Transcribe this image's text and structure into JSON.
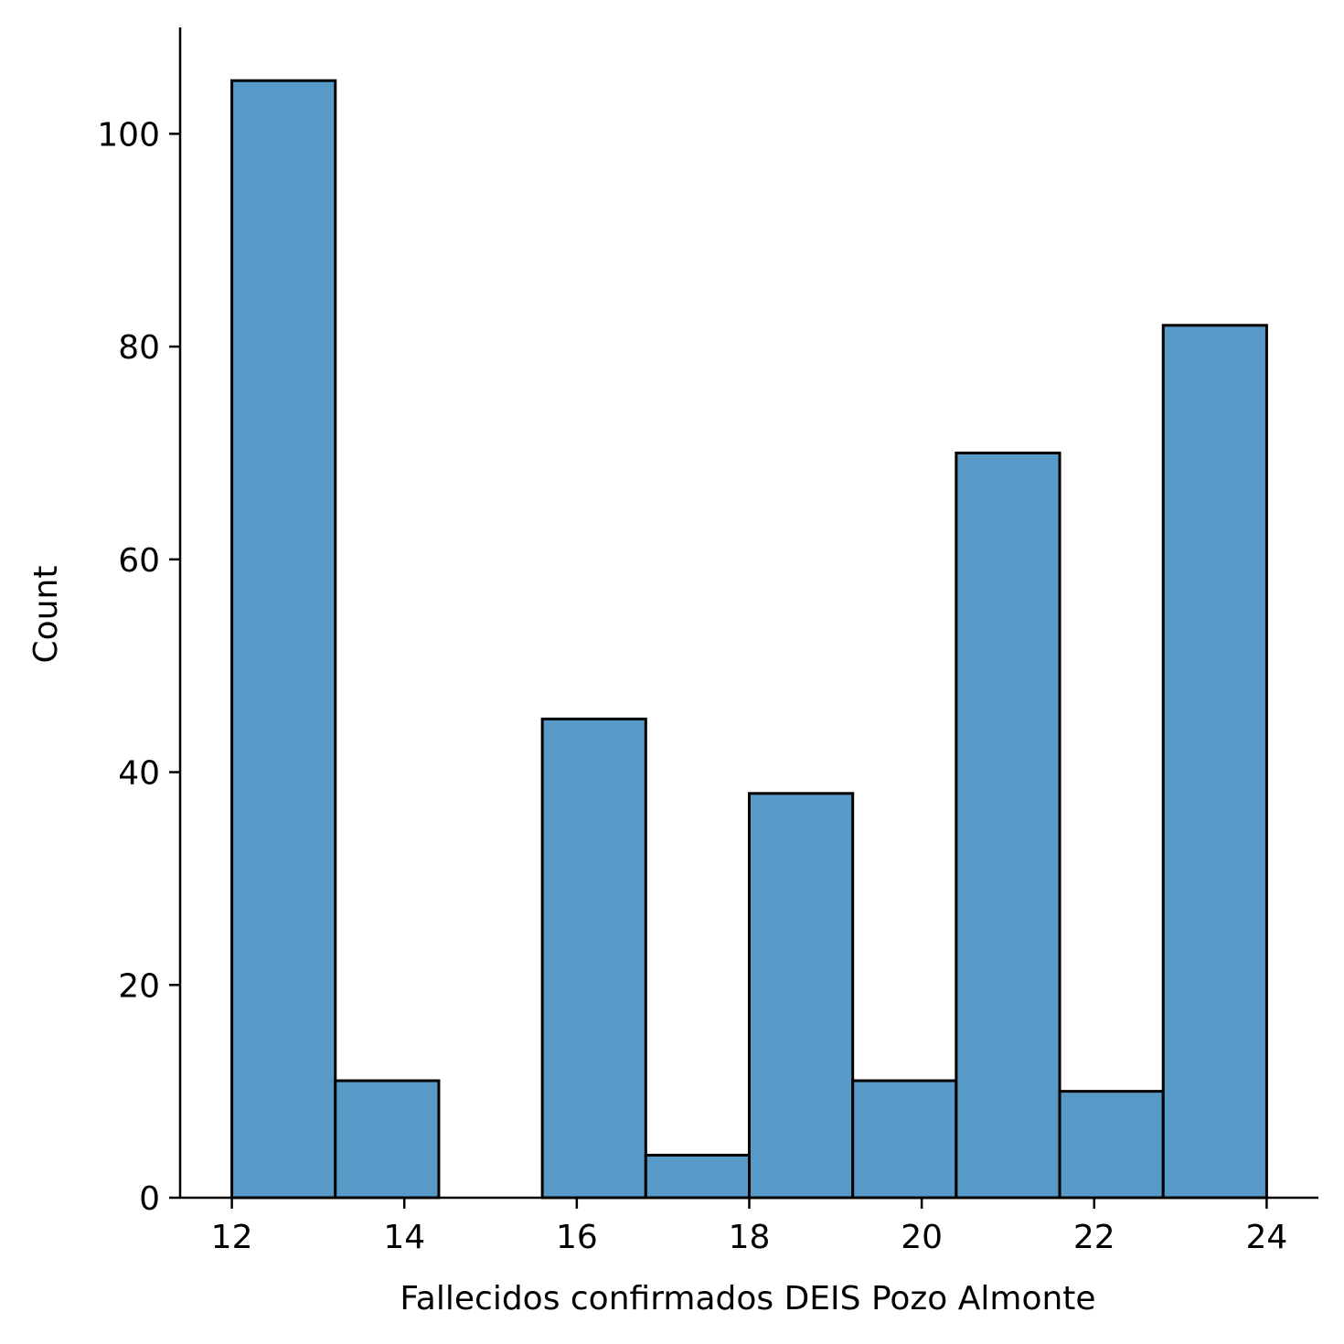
{
  "chart_data": {
    "type": "bar",
    "subtype": "histogram",
    "title": "",
    "xlabel": "Fallecidos confirmados DEIS Pozo Almonte",
    "ylabel": "Count",
    "bins": [
      {
        "start": 12.0,
        "end": 13.2,
        "count": 105
      },
      {
        "start": 13.2,
        "end": 14.4,
        "count": 11
      },
      {
        "start": 14.4,
        "end": 15.6,
        "count": 0
      },
      {
        "start": 15.6,
        "end": 16.8,
        "count": 45
      },
      {
        "start": 16.8,
        "end": 18.0,
        "count": 4
      },
      {
        "start": 18.0,
        "end": 19.2,
        "count": 38
      },
      {
        "start": 19.2,
        "end": 20.4,
        "count": 11
      },
      {
        "start": 20.4,
        "end": 21.6,
        "count": 70
      },
      {
        "start": 21.6,
        "end": 22.8,
        "count": 10
      },
      {
        "start": 22.8,
        "end": 24.0,
        "count": 82
      }
    ],
    "xlim": [
      11.4,
      24.6
    ],
    "ylim": [
      0,
      110
    ],
    "x_ticks": [
      "12",
      "14",
      "16",
      "18",
      "20",
      "22",
      "24"
    ],
    "y_ticks": [
      "0",
      "20",
      "40",
      "60",
      "80",
      "100"
    ],
    "grid": false,
    "bar_color": "#579ac7",
    "edge_color": "#000000"
  }
}
